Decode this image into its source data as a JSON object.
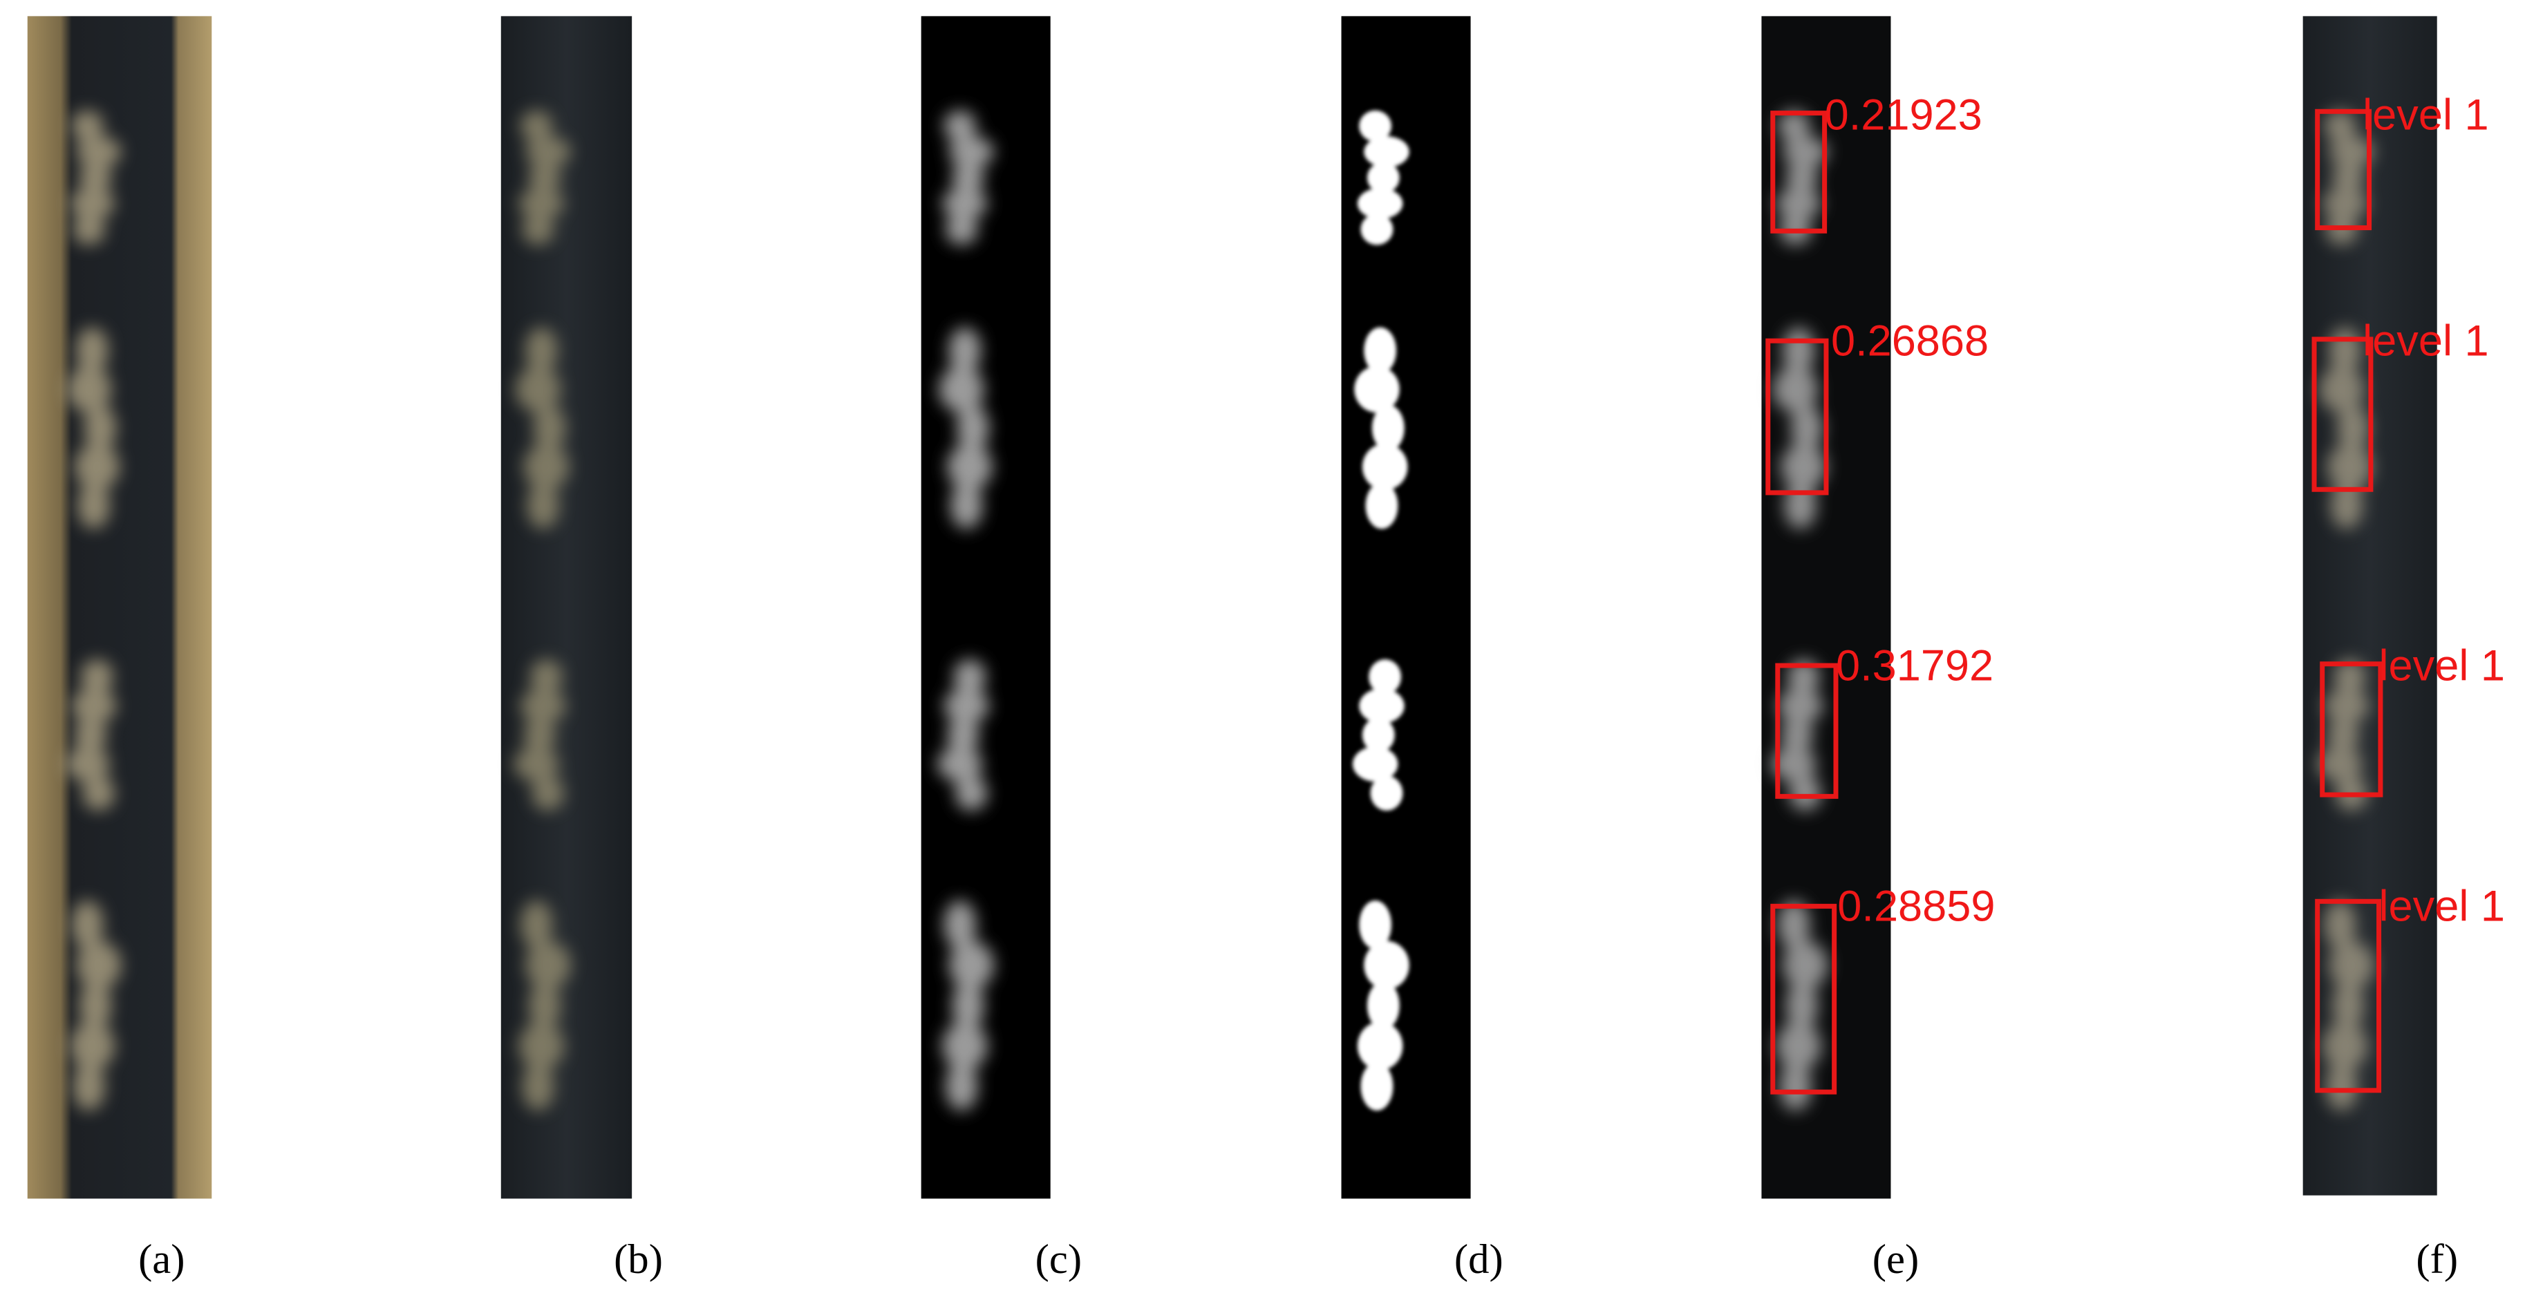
{
  "panels": [
    {
      "label": "(a)"
    },
    {
      "label": "(b)"
    },
    {
      "label": "(c)"
    },
    {
      "label": "(d)"
    },
    {
      "label": "(e)",
      "annotations": [
        "0.21923",
        "0.26868",
        "0.31792",
        "0.28859"
      ]
    },
    {
      "label": "(f)",
      "annotations": [
        "level 1",
        "level 1",
        "level 1",
        "level 1"
      ]
    }
  ]
}
